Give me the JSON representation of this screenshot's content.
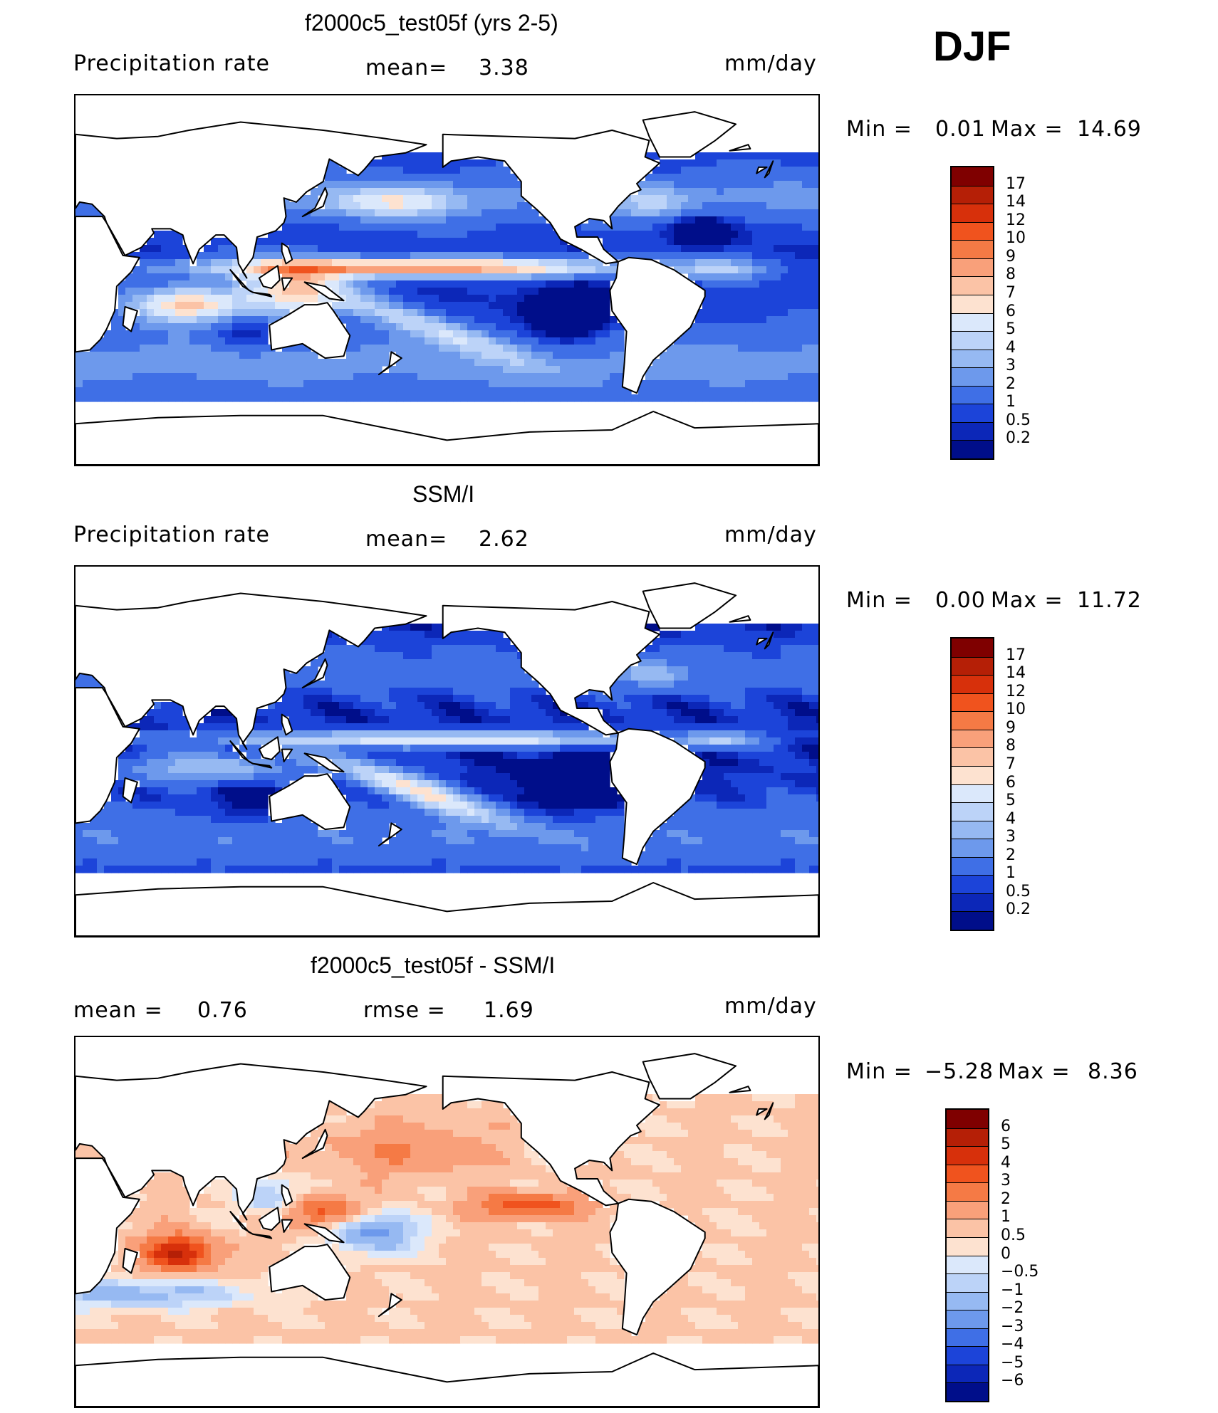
{
  "season": "DJF",
  "units_label": "mm/day",
  "panels": [
    {
      "title": "f2000c5_test05f (yrs 2-5)",
      "left_label": "Precipitation rate",
      "stat1": "mean=",
      "stat1_value": "3.38",
      "min_label": "Min =",
      "min_value": "0.01",
      "max_label": "Max =",
      "max_value": "14.69",
      "field": "model"
    },
    {
      "title": "SSM/I",
      "left_label": "Precipitation rate",
      "stat1": "mean=",
      "stat1_value": "2.62",
      "min_label": "Min =",
      "min_value": "0.00",
      "max_label": "Max =",
      "max_value": "11.72",
      "field": "obs"
    },
    {
      "title": "f2000c5_test05f - SSM/I",
      "left_label": "mean =",
      "left_value": "0.76",
      "stat1": "rmse =",
      "stat1_value": "1.69",
      "min_label": "Min =",
      "min_value": "−5.28",
      "max_label": "Max =",
      "max_value": "8.36",
      "field": "diff"
    }
  ],
  "colorbar_precip": {
    "levels": [
      "17",
      "14",
      "12",
      "10",
      "9",
      "8",
      "7",
      "6",
      "5",
      "4",
      "3",
      "2",
      "1",
      "0.5",
      "0.2"
    ],
    "colors": [
      "#7f0000",
      "#b51f06",
      "#d7300b",
      "#f0531e",
      "#f57a45",
      "#f9a07a",
      "#fbc3a6",
      "#fde2d0",
      "#dbe8fb",
      "#bcd3f8",
      "#96b9f2",
      "#6d99ec",
      "#3f6fe6",
      "#1c44d9",
      "#0c27b8",
      "#000e8a"
    ]
  },
  "colorbar_diff": {
    "levels": [
      "6",
      "5",
      "4",
      "3",
      "2",
      "1",
      "0.5",
      "0",
      "−0.5",
      "−1",
      "−2",
      "−3",
      "−4",
      "−5",
      "−6"
    ],
    "colors": [
      "#7f0000",
      "#b51f06",
      "#d7300b",
      "#f0531e",
      "#f57a45",
      "#f9a07a",
      "#fbc3a6",
      "#fde2d0",
      "#dbe8fb",
      "#bcd3f8",
      "#96b9f2",
      "#6d99ec",
      "#3f6fe6",
      "#1c44d9",
      "#0c27b8",
      "#000e8a"
    ]
  }
}
